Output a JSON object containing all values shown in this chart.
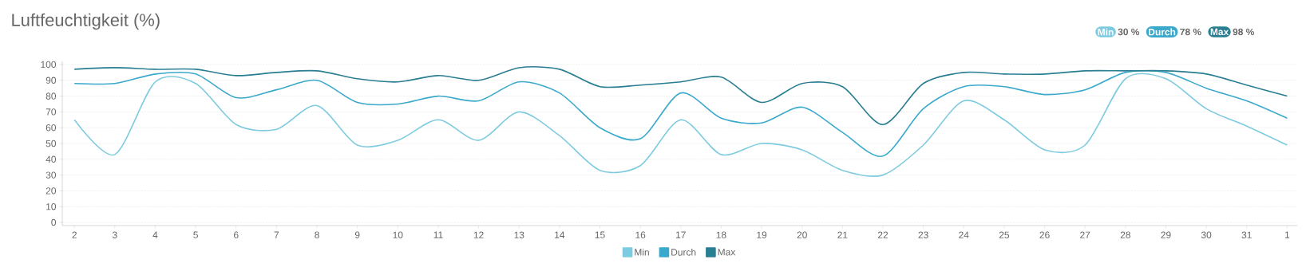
{
  "chart_data": {
    "type": "line",
    "title": "Luftfeuchtigkeit (%)",
    "categories": [
      "2",
      "3",
      "4",
      "5",
      "6",
      "7",
      "8",
      "9",
      "10",
      "11",
      "12",
      "13",
      "14",
      "15",
      "16",
      "17",
      "18",
      "19",
      "20",
      "21",
      "22",
      "23",
      "24",
      "25",
      "26",
      "27",
      "28",
      "29",
      "30",
      "31",
      "1"
    ],
    "series": [
      {
        "name": "Min",
        "color": "#7ecbdf",
        "values": [
          65,
          43,
          89,
          88,
          62,
          59,
          74,
          49,
          52,
          65,
          52,
          70,
          55,
          33,
          36,
          65,
          43,
          50,
          46,
          33,
          30,
          49,
          77,
          65,
          46,
          49,
          91,
          91,
          72,
          61,
          49
        ]
      },
      {
        "name": "Durch",
        "color": "#3aa9cb",
        "values": [
          88,
          88,
          94,
          94,
          79,
          84,
          90,
          76,
          75,
          80,
          77,
          89,
          82,
          60,
          53,
          82,
          66,
          63,
          73,
          57,
          42,
          72,
          86,
          86,
          81,
          84,
          95,
          95,
          85,
          77,
          66
        ]
      },
      {
        "name": "Max",
        "color": "#2a7e92",
        "values": [
          97,
          98,
          97,
          97,
          93,
          95,
          96,
          91,
          89,
          93,
          90,
          98,
          97,
          86,
          87,
          89,
          92,
          76,
          88,
          86,
          62,
          88,
          95,
          94,
          94,
          96,
          96,
          96,
          94,
          87,
          80
        ]
      }
    ],
    "annotations": [
      "30 %",
      "78 %",
      "98 %"
    ],
    "ylim": [
      -2,
      102
    ],
    "yticks": [
      0,
      10,
      20,
      30,
      40,
      50,
      60,
      70,
      80,
      90,
      100
    ],
    "grid": "y",
    "legend": "bottom",
    "marker": "none",
    "line_style": "solid"
  }
}
